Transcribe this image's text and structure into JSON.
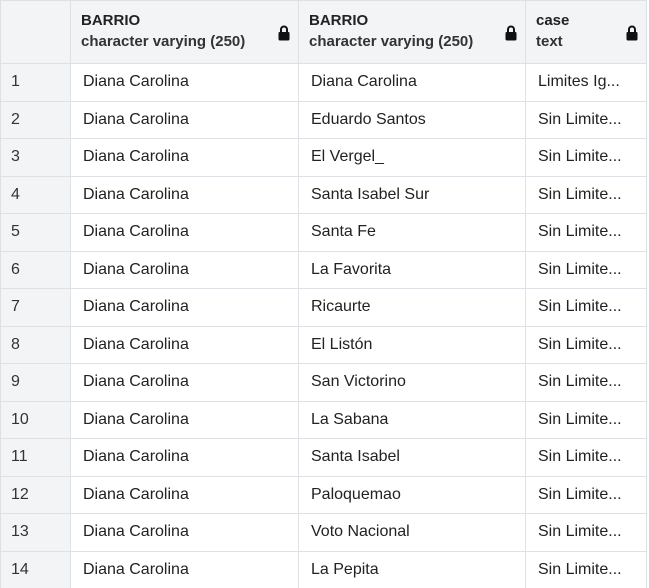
{
  "columns": [
    {
      "name": "BARRIO",
      "type": "character varying (250)",
      "locked": true
    },
    {
      "name": "BARRIO",
      "type": "character varying (250)",
      "locked": true
    },
    {
      "name": "case",
      "type": "text",
      "locked": true
    }
  ],
  "icons": {
    "lock": "lock-icon"
  },
  "rows": [
    {
      "num": "1",
      "barrio_1": "Diana Carolina",
      "barrio_2": "Diana Carolina",
      "case": "Limites Ig..."
    },
    {
      "num": "2",
      "barrio_1": "Diana Carolina",
      "barrio_2": "Eduardo Santos",
      "case": "Sin Limite..."
    },
    {
      "num": "3",
      "barrio_1": "Diana Carolina",
      "barrio_2": "El Vergel_",
      "case": "Sin Limite..."
    },
    {
      "num": "4",
      "barrio_1": "Diana Carolina",
      "barrio_2": "Santa Isabel Sur",
      "case": "Sin Limite..."
    },
    {
      "num": "5",
      "barrio_1": "Diana Carolina",
      "barrio_2": "Santa Fe",
      "case": "Sin Limite..."
    },
    {
      "num": "6",
      "barrio_1": "Diana Carolina",
      "barrio_2": "La Favorita",
      "case": "Sin Limite..."
    },
    {
      "num": "7",
      "barrio_1": "Diana Carolina",
      "barrio_2": "Ricaurte",
      "case": "Sin Limite..."
    },
    {
      "num": "8",
      "barrio_1": "Diana Carolina",
      "barrio_2": "El Listón",
      "case": "Sin Limite..."
    },
    {
      "num": "9",
      "barrio_1": "Diana Carolina",
      "barrio_2": "San Victorino",
      "case": "Sin Limite..."
    },
    {
      "num": "10",
      "barrio_1": "Diana Carolina",
      "barrio_2": "La Sabana",
      "case": "Sin Limite..."
    },
    {
      "num": "11",
      "barrio_1": "Diana Carolina",
      "barrio_2": "Santa Isabel",
      "case": "Sin Limite..."
    },
    {
      "num": "12",
      "barrio_1": "Diana Carolina",
      "barrio_2": "Paloquemao",
      "case": "Sin Limite..."
    },
    {
      "num": "13",
      "barrio_1": "Diana Carolina",
      "barrio_2": "Voto Nacional",
      "case": "Sin Limite..."
    },
    {
      "num": "14",
      "barrio_1": "Diana Carolina",
      "barrio_2": "La Pepita",
      "case": "Sin Limite..."
    }
  ]
}
